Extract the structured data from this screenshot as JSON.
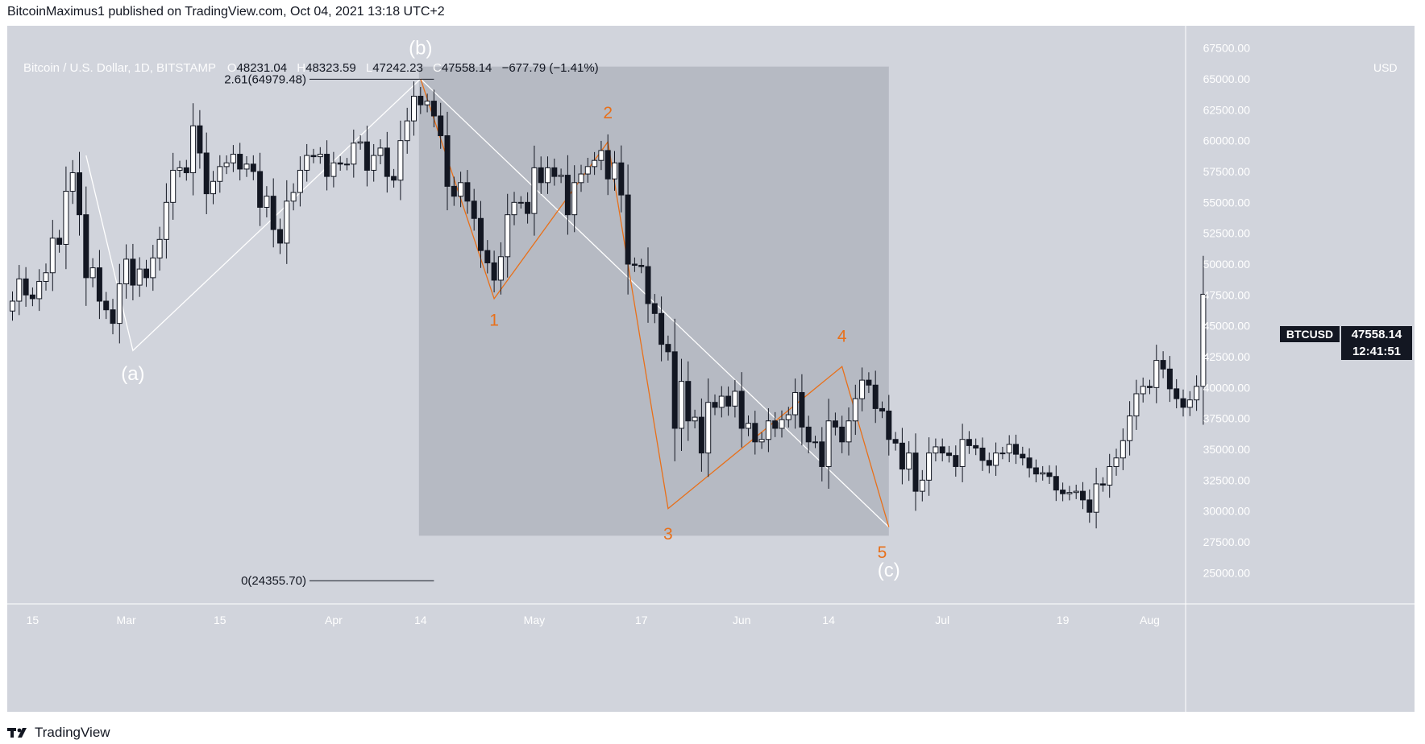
{
  "publisher_line": "BitcoinMaximus1 published on TradingView.com, Oct 04, 2021 13:18 UTC+2",
  "footer_brand": "TradingView",
  "legend": {
    "symbol": "Bitcoin / U.S. Dollar, 1D, BITSTAMP",
    "o_label": "O",
    "o": "48231.04",
    "h_label": "H",
    "h": "48323.59",
    "l_label": "L",
    "l": "47242.23",
    "c_label": "C",
    "c": "47558.14",
    "change": "−677.79 (−1.41%)"
  },
  "currency": "USD",
  "price_tag": {
    "symbol": "BTCUSD",
    "price": "47558.14",
    "countdown": "12:41:51"
  },
  "colors": {
    "background": "#d1d4dc",
    "box": "#b2b5be",
    "orange": "#e8701a",
    "white": "#ffffff",
    "dark": "#131722"
  },
  "chart_data": {
    "type": "candlestick",
    "series_name": "BTCUSD",
    "y_ticks": [
      25000,
      27500,
      30000,
      32500,
      35000,
      37500,
      40000,
      42500,
      45000,
      47500,
      50000,
      52500,
      55000,
      57500,
      60000,
      62500,
      65000,
      67500
    ],
    "ylim": [
      23000,
      68000
    ],
    "x_ticks": [
      {
        "label": "15",
        "index": 3
      },
      {
        "label": "Mar",
        "index": 17
      },
      {
        "label": "15",
        "index": 31
      },
      {
        "label": "Apr",
        "index": 48
      },
      {
        "label": "14",
        "index": 61
      },
      {
        "label": "May",
        "index": 78
      },
      {
        "label": "17",
        "index": 94
      },
      {
        "label": "Jun",
        "index": 109
      },
      {
        "label": "14",
        "index": 122
      },
      {
        "label": "Jul",
        "index": 139
      },
      {
        "label": "19",
        "index": 157
      },
      {
        "label": "Aug",
        "index": 170
      }
    ],
    "candles_start": "Feb 12, 2021",
    "closes": [
      47000,
      48800,
      47500,
      47200,
      48600,
      49300,
      52100,
      51600,
      55900,
      57400,
      54000,
      48900,
      49700,
      47000,
      46300,
      45200,
      48400,
      50400,
      48300,
      49600,
      48900,
      50500,
      52000,
      55000,
      57600,
      57800,
      57400,
      61200,
      59000,
      55700,
      56700,
      57900,
      58200,
      58900,
      57700,
      58100,
      57500,
      54600,
      55500,
      52800,
      51700,
      55100,
      55800,
      57600,
      58800,
      58700,
      58900,
      57100,
      58200,
      58100,
      58100,
      59800,
      59900,
      57600,
      58800,
      59400,
      57100,
      56800,
      60000,
      61600,
      63600,
      62900,
      63200,
      62000,
      60400,
      56300,
      55500,
      56600,
      55100,
      53700,
      51100,
      50100,
      48700,
      50600,
      54000,
      55000,
      55000,
      54100,
      57800,
      56600,
      57800,
      57100,
      57200,
      54000,
      56600,
      57300,
      57900,
      58400,
      59200,
      56900,
      58200,
      55600,
      50000,
      49900,
      49800,
      46800,
      46000,
      43500,
      42900,
      36700,
      40500,
      37300,
      37600,
      34700,
      38800,
      38400,
      39300,
      38500,
      39700,
      36700,
      37100,
      35600,
      35800,
      37300,
      36700,
      37400,
      37800,
      39600,
      36800,
      35600,
      35600,
      33600,
      37300,
      36800,
      35600,
      37300,
      39100,
      40600,
      40200,
      38300,
      38100,
      35800,
      35500,
      33400,
      34700,
      31600,
      32500,
      34700,
      35200,
      34700,
      34500,
      33600,
      35800,
      35300,
      35100,
      34100,
      33700,
      34700,
      34700,
      35400,
      34600,
      34300,
      33500,
      33000,
      33100,
      32800,
      31700,
      31400,
      31500,
      31600,
      30900,
      29900,
      32200,
      32100,
      33600,
      34300,
      35700,
      37700,
      39500,
      40100,
      40000,
      42200,
      41500,
      39900,
      39100,
      38400,
      39000,
      40100,
      47558
    ]
  },
  "annotations": {
    "fib_top": "2.61(64979.48)",
    "fib_bottom": "0(24355.70)",
    "wave_labels": [
      "(a)",
      "(b)",
      "(c)",
      "1",
      "2",
      "3",
      "4",
      "5"
    ]
  }
}
